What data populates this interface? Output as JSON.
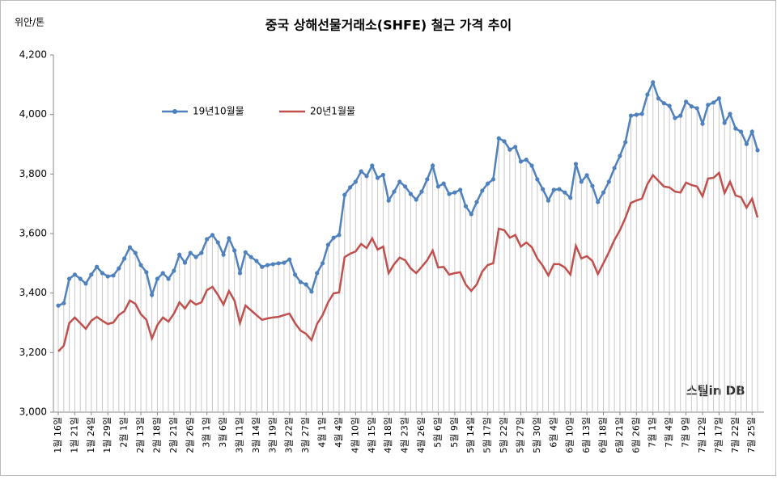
{
  "chart_data": {
    "type": "line",
    "title": "중국 상해선물거래소(SHFE) 철근 가격 추이",
    "y_unit": "위안/톤",
    "watermark": "스틸in DB",
    "categories": [
      "1월 16일",
      null,
      null,
      "1월 21일",
      null,
      null,
      "1월 24일",
      null,
      null,
      "1월 29일",
      null,
      null,
      "2월 1일",
      null,
      null,
      "2월 13일",
      null,
      null,
      "2월 18일",
      null,
      null,
      "2월 21일",
      null,
      null,
      "2월 26일",
      null,
      null,
      "3월 1일",
      null,
      null,
      "3월 6일",
      null,
      null,
      "3월 11일",
      null,
      null,
      "3월 14일",
      null,
      null,
      "3월 19일",
      null,
      null,
      "3월 22일",
      null,
      null,
      "3월 27일",
      null,
      null,
      "4월 1일",
      null,
      null,
      "4월 4일",
      null,
      null,
      "4월 10일",
      null,
      null,
      "4월 15일",
      null,
      null,
      "4월 18일",
      null,
      null,
      "4월 23일",
      null,
      null,
      "4월 26일",
      null,
      null,
      "5월 6일",
      null,
      null,
      "5월 9일",
      null,
      null,
      "5월 14일",
      null,
      null,
      "5월 17일",
      null,
      null,
      "5월 22일",
      null,
      null,
      "5월 27일",
      null,
      null,
      "5월 30일",
      null,
      null,
      "6월 4일",
      null,
      null,
      "6월 10일",
      null,
      null,
      "6월 13일",
      null,
      null,
      "6월 18일",
      null,
      null,
      "6월 21일",
      null,
      null,
      "6월 26일",
      null,
      null,
      "7월 1일",
      null,
      null,
      "7월 4일",
      null,
      null,
      "7월 9일",
      null,
      null,
      "7월 12일",
      null,
      null,
      "7월 17일",
      null,
      null,
      "7월 22일",
      null,
      null,
      "7월 25일",
      null
    ],
    "series": [
      {
        "name": "19년10월물",
        "color": "#4f81bd",
        "marker": true,
        "values": [
          3358,
          3366,
          3448,
          3462,
          3448,
          3432,
          3462,
          3488,
          3467,
          3456,
          3459,
          3483,
          3516,
          3554,
          3535,
          3494,
          3470,
          3394,
          3448,
          3467,
          3448,
          3475,
          3529,
          3502,
          3535,
          3521,
          3535,
          3581,
          3595,
          3570,
          3529,
          3584,
          3543,
          3467,
          3537,
          3521,
          3508,
          3488,
          3494,
          3497,
          3500,
          3502,
          3513,
          3462,
          3437,
          3429,
          3405,
          3467,
          3500,
          3562,
          3586,
          3595,
          3730,
          3755,
          3774,
          3809,
          3793,
          3828,
          3787,
          3797,
          3711,
          3741,
          3774,
          3758,
          3733,
          3714,
          3741,
          3782,
          3828,
          3758,
          3768,
          3733,
          3738,
          3747,
          3692,
          3665,
          3706,
          3744,
          3768,
          3782,
          3920,
          3910,
          3882,
          3891,
          3842,
          3848,
          3828,
          3782,
          3749,
          3711,
          3747,
          3749,
          3738,
          3720,
          3834,
          3774,
          3796,
          3760,
          3706,
          3738,
          3774,
          3820,
          3861,
          3907,
          3996,
          3999,
          4002,
          4067,
          4108,
          4054,
          4038,
          4029,
          3988,
          3996,
          4043,
          4027,
          4021,
          3969,
          4032,
          4040,
          4054,
          3972,
          4002,
          3953,
          3942,
          3901,
          3942,
          3880
        ]
      },
      {
        "name": "20년1월물",
        "color": "#c0504d",
        "marker": false,
        "values": [
          3204,
          3223,
          3299,
          3318,
          3299,
          3280,
          3307,
          3320,
          3307,
          3296,
          3301,
          3326,
          3339,
          3375,
          3364,
          3329,
          3310,
          3247,
          3293,
          3318,
          3304,
          3331,
          3369,
          3348,
          3375,
          3361,
          3369,
          3410,
          3421,
          3394,
          3361,
          3407,
          3375,
          3299,
          3358,
          3342,
          3326,
          3310,
          3315,
          3318,
          3320,
          3326,
          3331,
          3299,
          3274,
          3263,
          3242,
          3296,
          3326,
          3369,
          3399,
          3402,
          3521,
          3532,
          3540,
          3565,
          3551,
          3584,
          3546,
          3556,
          3467,
          3497,
          3519,
          3510,
          3483,
          3467,
          3488,
          3510,
          3543,
          3486,
          3488,
          3462,
          3467,
          3470,
          3429,
          3407,
          3429,
          3472,
          3494,
          3500,
          3616,
          3611,
          3586,
          3595,
          3556,
          3570,
          3554,
          3516,
          3491,
          3459,
          3497,
          3497,
          3486,
          3462,
          3559,
          3516,
          3524,
          3508,
          3464,
          3500,
          3537,
          3578,
          3611,
          3652,
          3703,
          3711,
          3717,
          3766,
          3796,
          3777,
          3758,
          3755,
          3741,
          3738,
          3771,
          3763,
          3758,
          3725,
          3785,
          3787,
          3804,
          3736,
          3774,
          3728,
          3722,
          3687,
          3717,
          3654
        ]
      }
    ],
    "drop_lines": true,
    "ylim": [
      3000,
      4200
    ],
    "yticks": [
      {
        "value": 3000,
        "label": "3,000"
      },
      {
        "value": 3200,
        "label": "3,200"
      },
      {
        "value": 3400,
        "label": "3,400"
      },
      {
        "value": 3600,
        "label": "3,600"
      },
      {
        "value": 3800,
        "label": "3,800"
      },
      {
        "value": 4000,
        "label": "4,000"
      },
      {
        "value": 4200,
        "label": "4,200"
      }
    ],
    "legend": "top-left"
  }
}
